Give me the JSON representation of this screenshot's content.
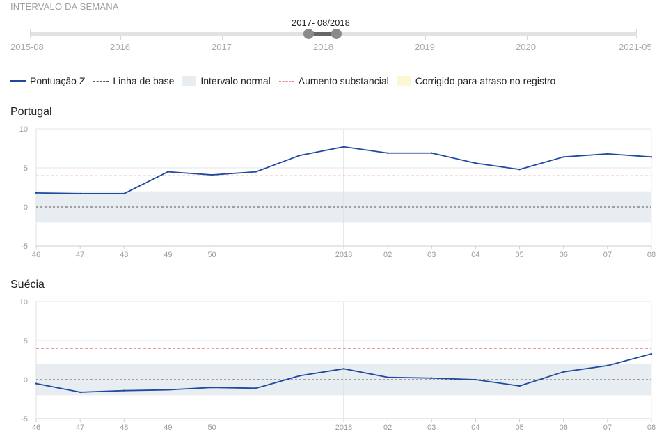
{
  "interval": {
    "title": "INTERVALO DA SEMANA",
    "selected_label": "2017- 08/2018",
    "start_label": "2015-08",
    "end_label": "2021-05",
    "years": [
      "2016",
      "2017",
      "2018",
      "2019",
      "2020"
    ]
  },
  "legend": {
    "items": [
      {
        "label": "Pontuação Z",
        "style": "line"
      },
      {
        "label": "Linha de base",
        "style": "dash"
      },
      {
        "label": "Intervalo normal",
        "style": "band"
      },
      {
        "label": "Aumento substancial",
        "style": "reddash"
      },
      {
        "label": "Corrigido para atraso no registro",
        "style": "yellow"
      }
    ]
  },
  "colors": {
    "zscore": "#1f4aa0",
    "baseline": "#555555",
    "normal_band": "#e8edf2",
    "substantial": "#e87a7a",
    "corrected": "#fdf7d4",
    "grid": "#e6e6e6"
  },
  "chart_data": [
    {
      "type": "line",
      "title": "Portugal",
      "x_ticks": [
        "46",
        "47",
        "48",
        "49",
        "50",
        "2018",
        "02",
        "03",
        "04",
        "05",
        "06",
        "07",
        "08"
      ],
      "y_ticks": [
        10,
        5,
        0,
        -5
      ],
      "ylim": [
        -5,
        10
      ],
      "normal_range": [
        -2,
        2
      ],
      "substantial_threshold": 4,
      "baseline": 0,
      "series": [
        {
          "name": "Pontuação Z",
          "x": [
            "46",
            "47",
            "48",
            "49",
            "50",
            "51",
            "52",
            "2018",
            "02",
            "03",
            "04",
            "05",
            "06",
            "07",
            "08"
          ],
          "values": [
            1.8,
            1.7,
            1.7,
            4.5,
            4.1,
            4.5,
            6.6,
            7.7,
            6.9,
            6.9,
            5.6,
            4.8,
            6.4,
            6.8,
            6.4
          ]
        }
      ]
    },
    {
      "type": "line",
      "title": "Suécia",
      "x_ticks": [
        "46",
        "47",
        "48",
        "49",
        "50",
        "2018",
        "02",
        "03",
        "04",
        "05",
        "06",
        "07",
        "08"
      ],
      "y_ticks": [
        10,
        5,
        0,
        -5
      ],
      "ylim": [
        -5,
        10
      ],
      "normal_range": [
        -2,
        2
      ],
      "substantial_threshold": 4,
      "baseline": 0,
      "series": [
        {
          "name": "Pontuação Z",
          "x": [
            "46",
            "47",
            "48",
            "49",
            "50",
            "51",
            "52",
            "2018",
            "02",
            "03",
            "04",
            "05",
            "06",
            "07",
            "08"
          ],
          "values": [
            -0.5,
            -1.6,
            -1.4,
            -1.3,
            -1.0,
            -1.1,
            0.5,
            1.4,
            0.3,
            0.2,
            0.0,
            -0.8,
            1.0,
            1.8,
            3.3
          ]
        }
      ]
    }
  ]
}
